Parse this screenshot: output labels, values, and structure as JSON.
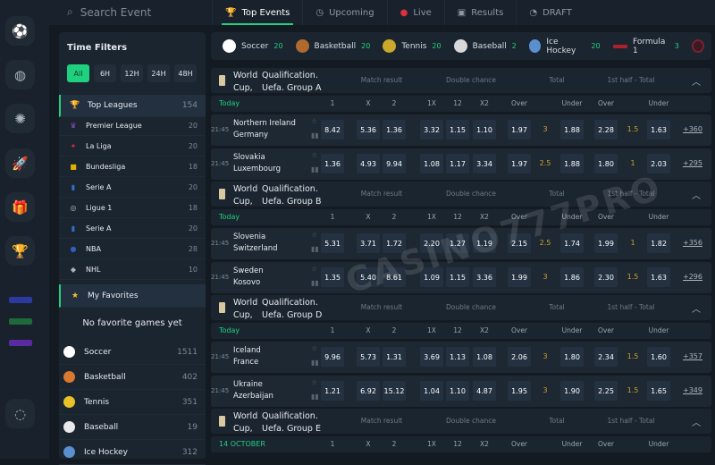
{
  "search": {
    "placeholder": "Search Event"
  },
  "tabs": [
    {
      "label": "Top Events",
      "icon": "trophy-icon",
      "active": true
    },
    {
      "label": "Upcoming",
      "icon": "clock-icon"
    },
    {
      "label": "Live",
      "icon": "live-dot-icon"
    },
    {
      "label": "Results",
      "icon": "results-icon"
    },
    {
      "label": "DRAFT",
      "icon": "draft-icon"
    }
  ],
  "filters": {
    "title": "Time Filters",
    "buttons": [
      "All",
      "6H",
      "12H",
      "24H",
      "48H"
    ],
    "active": "All"
  },
  "leagues": [
    {
      "label": "Top Leagues",
      "count": "154",
      "icon": "trophy-icon"
    },
    {
      "label": "Premier League",
      "count": "20"
    },
    {
      "label": "La Liga",
      "count": "20"
    },
    {
      "label": "Bundesliga",
      "count": "18"
    },
    {
      "label": "Serie A",
      "count": "20"
    },
    {
      "label": "Ligue 1",
      "count": "18"
    },
    {
      "label": "Serie A",
      "count": "20"
    },
    {
      "label": "NBA",
      "count": "28"
    },
    {
      "label": "NHL",
      "count": "10"
    }
  ],
  "favorites": {
    "label": "My Favorites",
    "empty": "No favorite games yet"
  },
  "sidebar_sports": [
    {
      "label": "Soccer",
      "count": "1511",
      "color": "#ffffff"
    },
    {
      "label": "Basketball",
      "count": "402",
      "color": "#d9782f"
    },
    {
      "label": "Tennis",
      "count": "351",
      "color": "#e8c02a"
    },
    {
      "label": "Baseball",
      "count": "19",
      "color": "#e9e9e9"
    },
    {
      "label": "Ice Hockey",
      "count": "312",
      "color": "#5a8fd0"
    }
  ],
  "sports_bar": [
    {
      "label": "Soccer",
      "count": "20",
      "color": "#ffffff"
    },
    {
      "label": "Basketball",
      "count": "20",
      "color": "#b06a30"
    },
    {
      "label": "Tennis",
      "count": "20",
      "color": "#c9a82a"
    },
    {
      "label": "Baseball",
      "count": "2",
      "color": "#d8d8d8"
    },
    {
      "label": "Ice Hockey",
      "count": "20",
      "color": "#5a8fd0"
    },
    {
      "label": "Formula 1",
      "count": "3",
      "color": "#b0202a"
    }
  ],
  "markets": [
    "Match result",
    "Double chance",
    "Total",
    "1st half - Total"
  ],
  "columns": [
    "1",
    "X",
    "2",
    "1X",
    "12",
    "X2",
    "Over",
    "Under",
    "Over",
    "Under"
  ],
  "groups": [
    {
      "title_a": "World\nCup,",
      "title_b": "Qualification.\nUefa. Group A",
      "date": "Today",
      "matches": [
        {
          "time": "21:45",
          "home": "Northern Ireland",
          "away": "Germany",
          "odds": [
            "8.42",
            "5.36",
            "1.36",
            "3.32",
            "1.15",
            "1.10",
            "1.97",
            "1.88",
            "2.28",
            "1.63"
          ],
          "line1": "3",
          "line2": "1.5",
          "more": "+360"
        },
        {
          "time": "21:45",
          "home": "Slovakia",
          "away": "Luxembourg",
          "odds": [
            "1.36",
            "4.93",
            "9.94",
            "1.08",
            "1.17",
            "3.34",
            "1.97",
            "1.88",
            "1.80",
            "2.03"
          ],
          "line1": "2.5",
          "line2": "1",
          "more": "+295"
        }
      ]
    },
    {
      "title_a": "World\nCup,",
      "title_b": "Qualification.\nUefa. Group B",
      "date": "Today",
      "matches": [
        {
          "time": "21:45",
          "home": "Slovenia",
          "away": "Switzerland",
          "odds": [
            "5.31",
            "3.71",
            "1.72",
            "2.20",
            "1.27",
            "1.19",
            "2.15",
            "1.74",
            "1.99",
            "1.82"
          ],
          "line1": "2.5",
          "line2": "1",
          "more": "+356"
        },
        {
          "time": "21:45",
          "home": "Sweden",
          "away": "Kosovo",
          "odds": [
            "1.35",
            "5.40",
            "8.61",
            "1.09",
            "1.15",
            "3.36",
            "1.99",
            "1.86",
            "2.30",
            "1.63"
          ],
          "line1": "3",
          "line2": "1.5",
          "more": "+296"
        }
      ]
    },
    {
      "title_a": "World\nCup,",
      "title_b": "Qualification.\nUefa. Group D",
      "date": "Today",
      "matches": [
        {
          "time": "21:45",
          "home": "Iceland",
          "away": "France",
          "odds": [
            "9.96",
            "5.73",
            "1.31",
            "3.69",
            "1.13",
            "1.08",
            "2.06",
            "1.80",
            "2.34",
            "1.60"
          ],
          "line1": "3",
          "line2": "1.5",
          "more": "+357"
        },
        {
          "time": "21:45",
          "home": "Ukraine",
          "away": "Azerbaijan",
          "odds": [
            "1.21",
            "6.92",
            "15.12",
            "1.04",
            "1.10",
            "4.87",
            "1.95",
            "1.90",
            "2.25",
            "1.65"
          ],
          "line1": "3",
          "line2": "1.5",
          "more": "+349"
        }
      ]
    },
    {
      "title_a": "World\nCup,",
      "title_b": "Qualification.\nUefa. Group E",
      "date": "14 OCTOBER",
      "matches": []
    }
  ],
  "watermark": "CASINO777PRO",
  "accent": "#1fd17e"
}
